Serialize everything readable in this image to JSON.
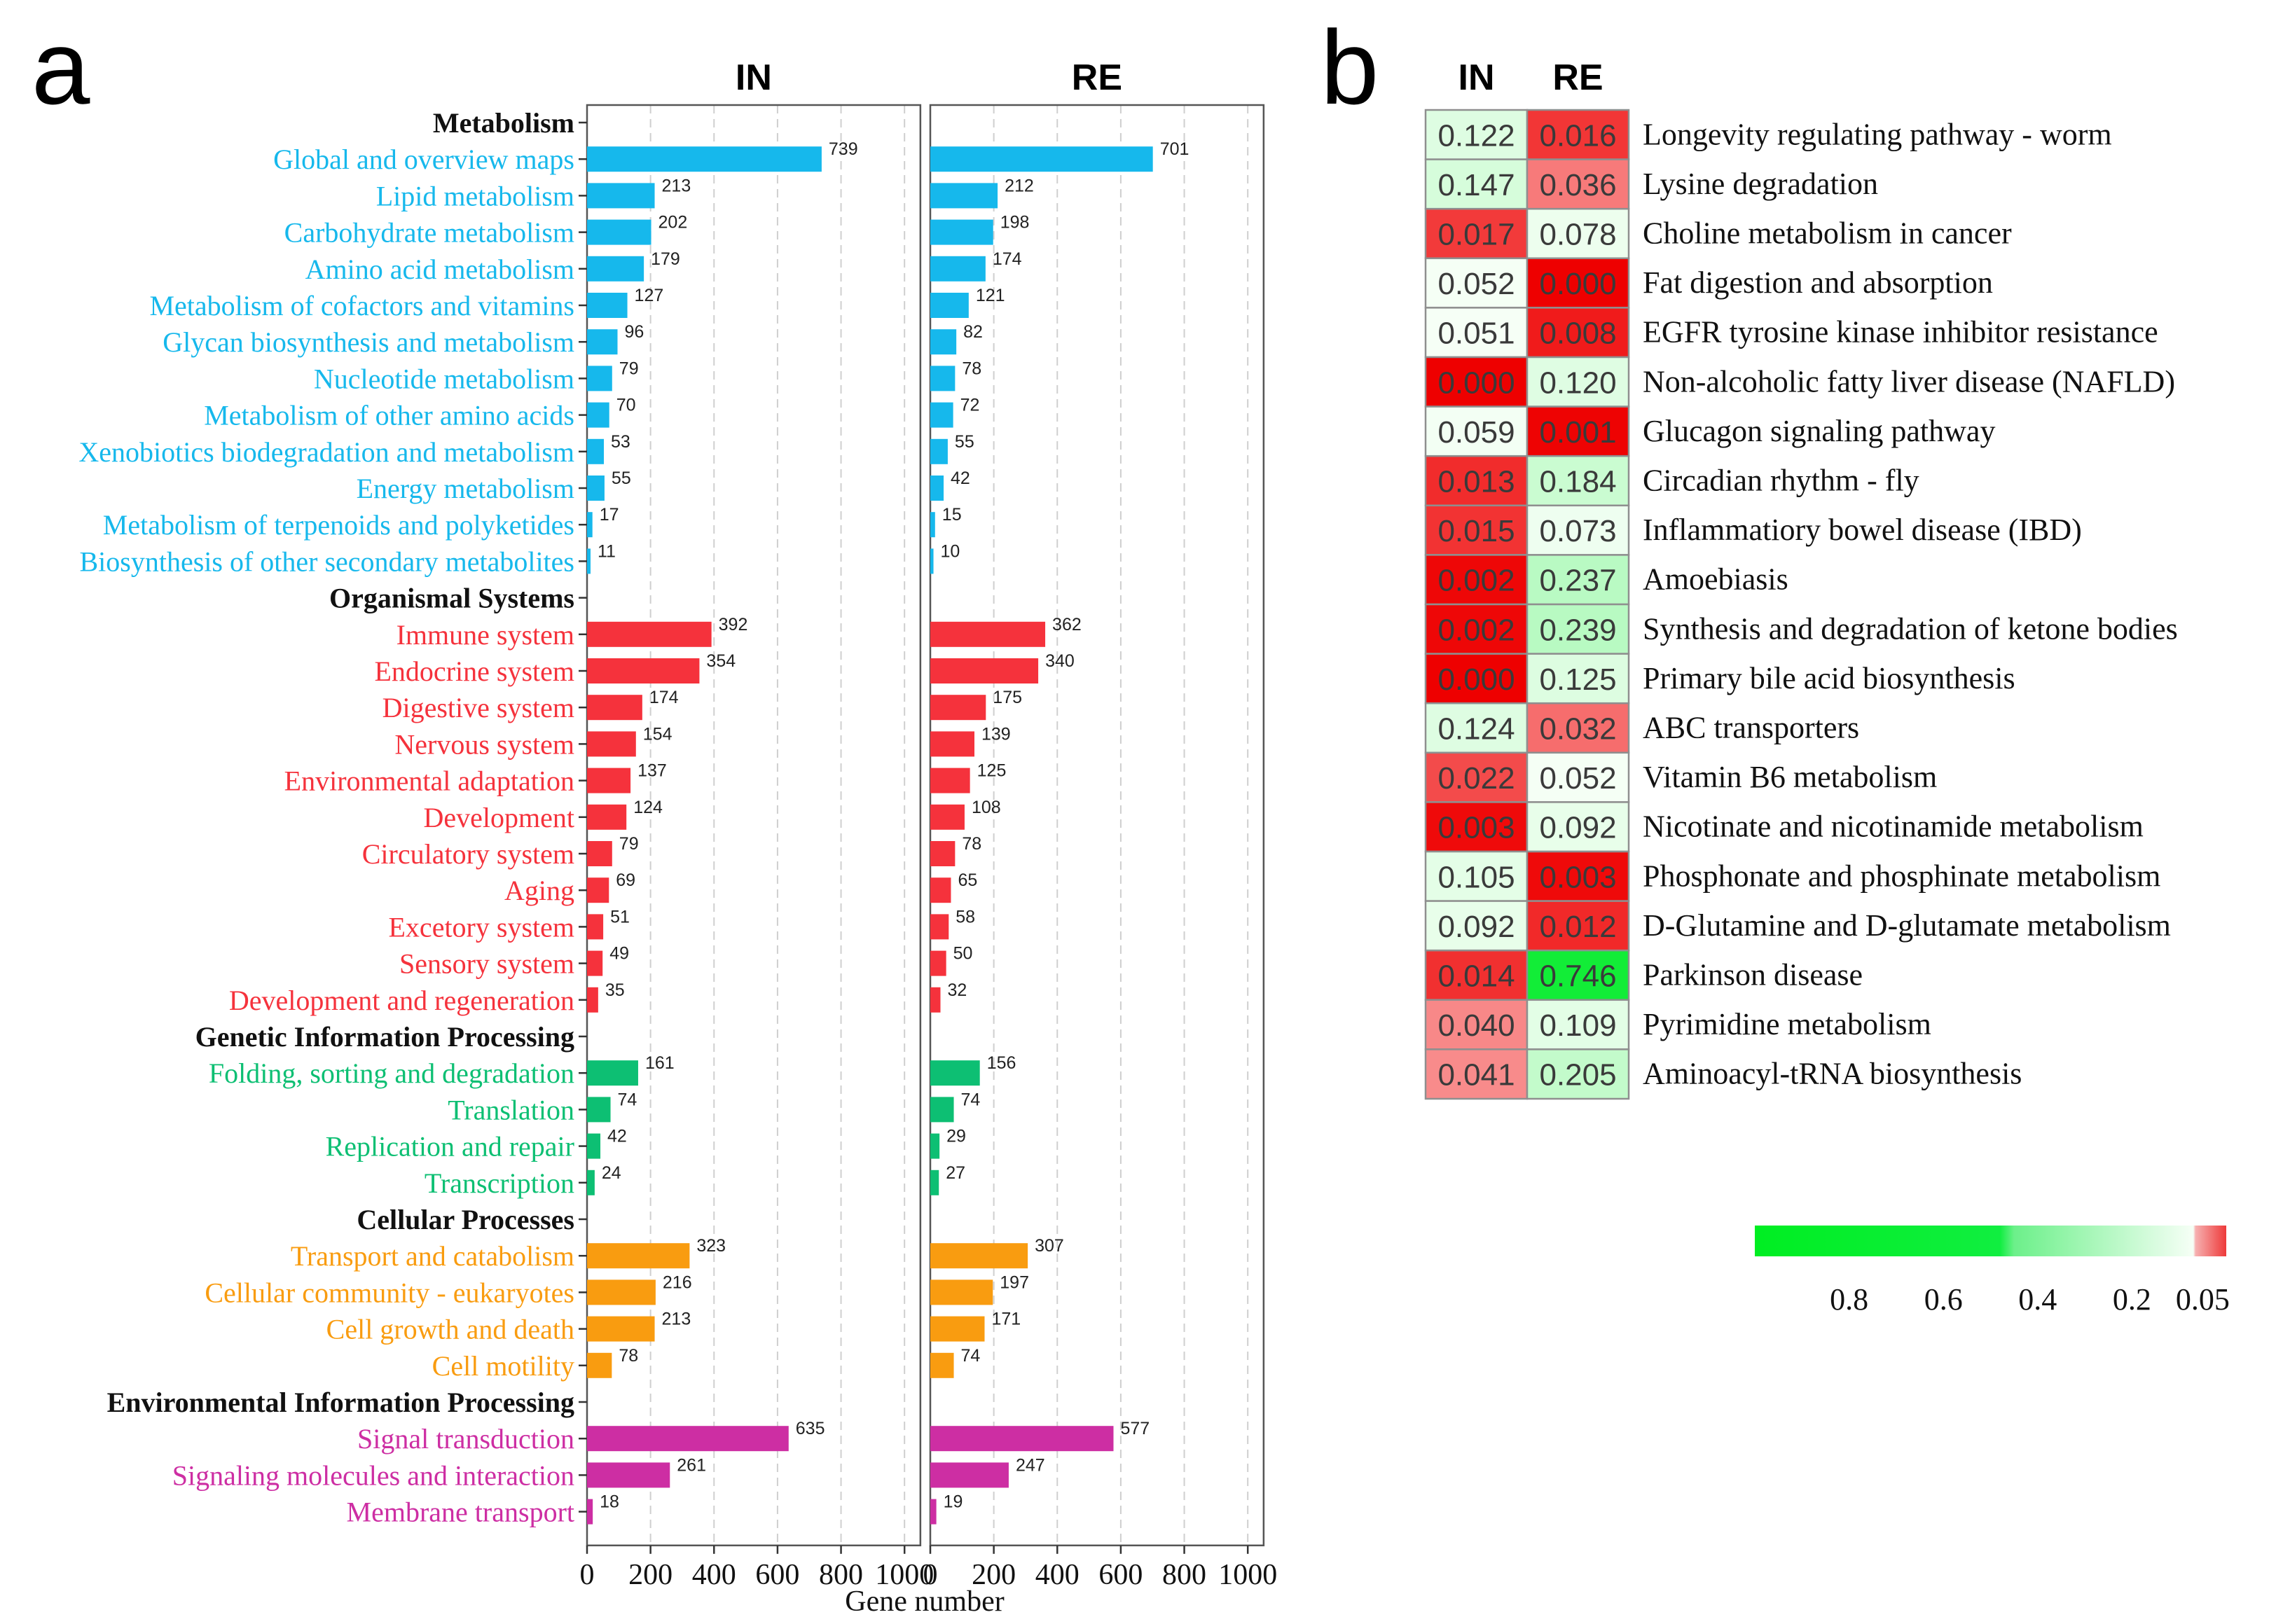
{
  "panel_a_label": "a",
  "panel_b_label": "b",
  "colors": {
    "Metabolism": "#16b8ec",
    "Organismal Systems": "#f5323c",
    "Genetic Information Processing": "#0dbf73",
    "Cellular Processes": "#f99c10",
    "Environmental Information Processing": "#cd2ea3",
    "category_header": "#111111"
  },
  "chart_data": [
    {
      "type": "bar",
      "orientation": "horizontal",
      "title": "",
      "panels": [
        "IN",
        "RE"
      ],
      "xlabel": "Gene number",
      "xlim": [
        0,
        1050
      ],
      "xticks": [
        0,
        200,
        400,
        600,
        800,
        1000
      ],
      "grid": "vertical dashed",
      "groups": [
        {
          "name": "Metabolism",
          "items": [
            {
              "label": "Global and overview maps",
              "IN": 739,
              "RE": 701
            },
            {
              "label": "Lipid metabolism",
              "IN": 213,
              "RE": 212
            },
            {
              "label": "Carbohydrate metabolism",
              "IN": 202,
              "RE": 198
            },
            {
              "label": "Amino acid metabolism",
              "IN": 179,
              "RE": 174
            },
            {
              "label": "Metabolism of cofactors and vitamins",
              "IN": 127,
              "RE": 121
            },
            {
              "label": "Glycan biosynthesis and metabolism",
              "IN": 96,
              "RE": 82
            },
            {
              "label": "Nucleotide metabolism",
              "IN": 79,
              "RE": 78
            },
            {
              "label": "Metabolism of other amino acids",
              "IN": 70,
              "RE": 72
            },
            {
              "label": "Xenobiotics biodegradation and metabolism",
              "IN": 53,
              "RE": 55
            },
            {
              "label": "Energy metabolism",
              "IN": 55,
              "RE": 42
            },
            {
              "label": "Metabolism of terpenoids and polyketides",
              "IN": 17,
              "RE": 15
            },
            {
              "label": "Biosynthesis of other secondary metabolites",
              "IN": 11,
              "RE": 10
            }
          ]
        },
        {
          "name": "Organismal Systems",
          "items": [
            {
              "label": "Immune system",
              "IN": 392,
              "RE": 362
            },
            {
              "label": "Endocrine system",
              "IN": 354,
              "RE": 340
            },
            {
              "label": "Digestive system",
              "IN": 174,
              "RE": 175
            },
            {
              "label": "Nervous system",
              "IN": 154,
              "RE": 139
            },
            {
              "label": "Environmental adaptation",
              "IN": 137,
              "RE": 125
            },
            {
              "label": "Development",
              "IN": 124,
              "RE": 108
            },
            {
              "label": "Circulatory system",
              "IN": 79,
              "RE": 78
            },
            {
              "label": "Aging",
              "IN": 69,
              "RE": 65
            },
            {
              "label": "Excetory system",
              "IN": 51,
              "RE": 58
            },
            {
              "label": "Sensory system",
              "IN": 49,
              "RE": 50
            },
            {
              "label": "Development and regeneration",
              "IN": 35,
              "RE": 32
            }
          ]
        },
        {
          "name": "Genetic Information Processing",
          "items": [
            {
              "label": "Folding, sorting and degradation",
              "IN": 161,
              "RE": 156
            },
            {
              "label": "Translation",
              "IN": 74,
              "RE": 74
            },
            {
              "label": "Replication and repair",
              "IN": 42,
              "RE": 29
            },
            {
              "label": "Transcription",
              "IN": 24,
              "RE": 27
            }
          ]
        },
        {
          "name": "Cellular Processes",
          "items": [
            {
              "label": "Transport and catabolism",
              "IN": 323,
              "RE": 307
            },
            {
              "label": "Cellular community - eukaryotes",
              "IN": 216,
              "RE": 197
            },
            {
              "label": "Cell growth and death",
              "IN": 213,
              "RE": 171
            },
            {
              "label": "Cell motility",
              "IN": 78,
              "RE": 74
            }
          ]
        },
        {
          "name": "Environmental Information Processing",
          "items": [
            {
              "label": "Signal transduction",
              "IN": 635,
              "RE": 577
            },
            {
              "label": "Signaling molecules and interaction",
              "IN": 261,
              "RE": 247
            },
            {
              "label": "Membrane transport",
              "IN": 18,
              "RE": 19
            }
          ]
        }
      ]
    },
    {
      "type": "heatmap",
      "columns": [
        "IN",
        "RE"
      ],
      "rows": [
        {
          "label": "Longevity regulating pathway - worm",
          "IN": "0.122",
          "RE": "0.016"
        },
        {
          "label": "Lysine degradation",
          "IN": "0.147",
          "RE": "0.036"
        },
        {
          "label": "Choline metabolism in cancer",
          "IN": "0.017",
          "RE": "0.078"
        },
        {
          "label": "Fat digestion and absorption",
          "IN": "0.052",
          "RE": "0.000"
        },
        {
          "label": "EGFR tyrosine kinase inhibitor resistance",
          "IN": "0.051",
          "RE": "0.008"
        },
        {
          "label": "Non-alcoholic fatty liver disease (NAFLD)",
          "IN": "0.000",
          "RE": "0.120"
        },
        {
          "label": "Glucagon signaling pathway",
          "IN": "0.059",
          "RE": "0.001"
        },
        {
          "label": "Circadian rhythm - fly",
          "IN": "0.013",
          "RE": "0.184"
        },
        {
          "label": "Inflammatiory bowel disease (IBD)",
          "IN": "0.015",
          "RE": "0.073"
        },
        {
          "label": "Amoebiasis",
          "IN": "0.002",
          "RE": "0.237"
        },
        {
          "label": "Synthesis and degradation of ketone bodies",
          "IN": "0.002",
          "RE": "0.239"
        },
        {
          "label": "Primary bile acid biosynthesis",
          "IN": "0.000",
          "RE": "0.125"
        },
        {
          "label": "ABC transporters",
          "IN": "0.124",
          "RE": "0.032"
        },
        {
          "label": "Vitamin B6 metabolism",
          "IN": "0.022",
          "RE": "0.052"
        },
        {
          "label": "Nicotinate and nicotinamide metabolism",
          "IN": "0.003",
          "RE": "0.092"
        },
        {
          "label": "Phosphonate and phosphinate metabolism",
          "IN": "0.105",
          "RE": "0.003"
        },
        {
          "label": "D-Glutamine and D-glutamate metabolism",
          "IN": "0.092",
          "RE": "0.012"
        },
        {
          "label": "Parkinson disease",
          "IN": "0.014",
          "RE": "0.746"
        },
        {
          "label": "Pyrimidine metabolism",
          "IN": "0.040",
          "RE": "0.109"
        },
        {
          "label": "Aminoacyl-tRNA biosynthesis",
          "IN": "0.041",
          "RE": "0.205"
        }
      ],
      "colorbar": {
        "ticks": [
          "0.8",
          "0.6",
          "0.4",
          "0.2",
          "0.05"
        ],
        "tick_values": [
          0.8,
          0.6,
          0.4,
          0.2,
          0.05
        ],
        "range": [
          0,
          1
        ],
        "low_color": "#ee3a3a",
        "high_color": "#00ee22"
      }
    }
  ]
}
